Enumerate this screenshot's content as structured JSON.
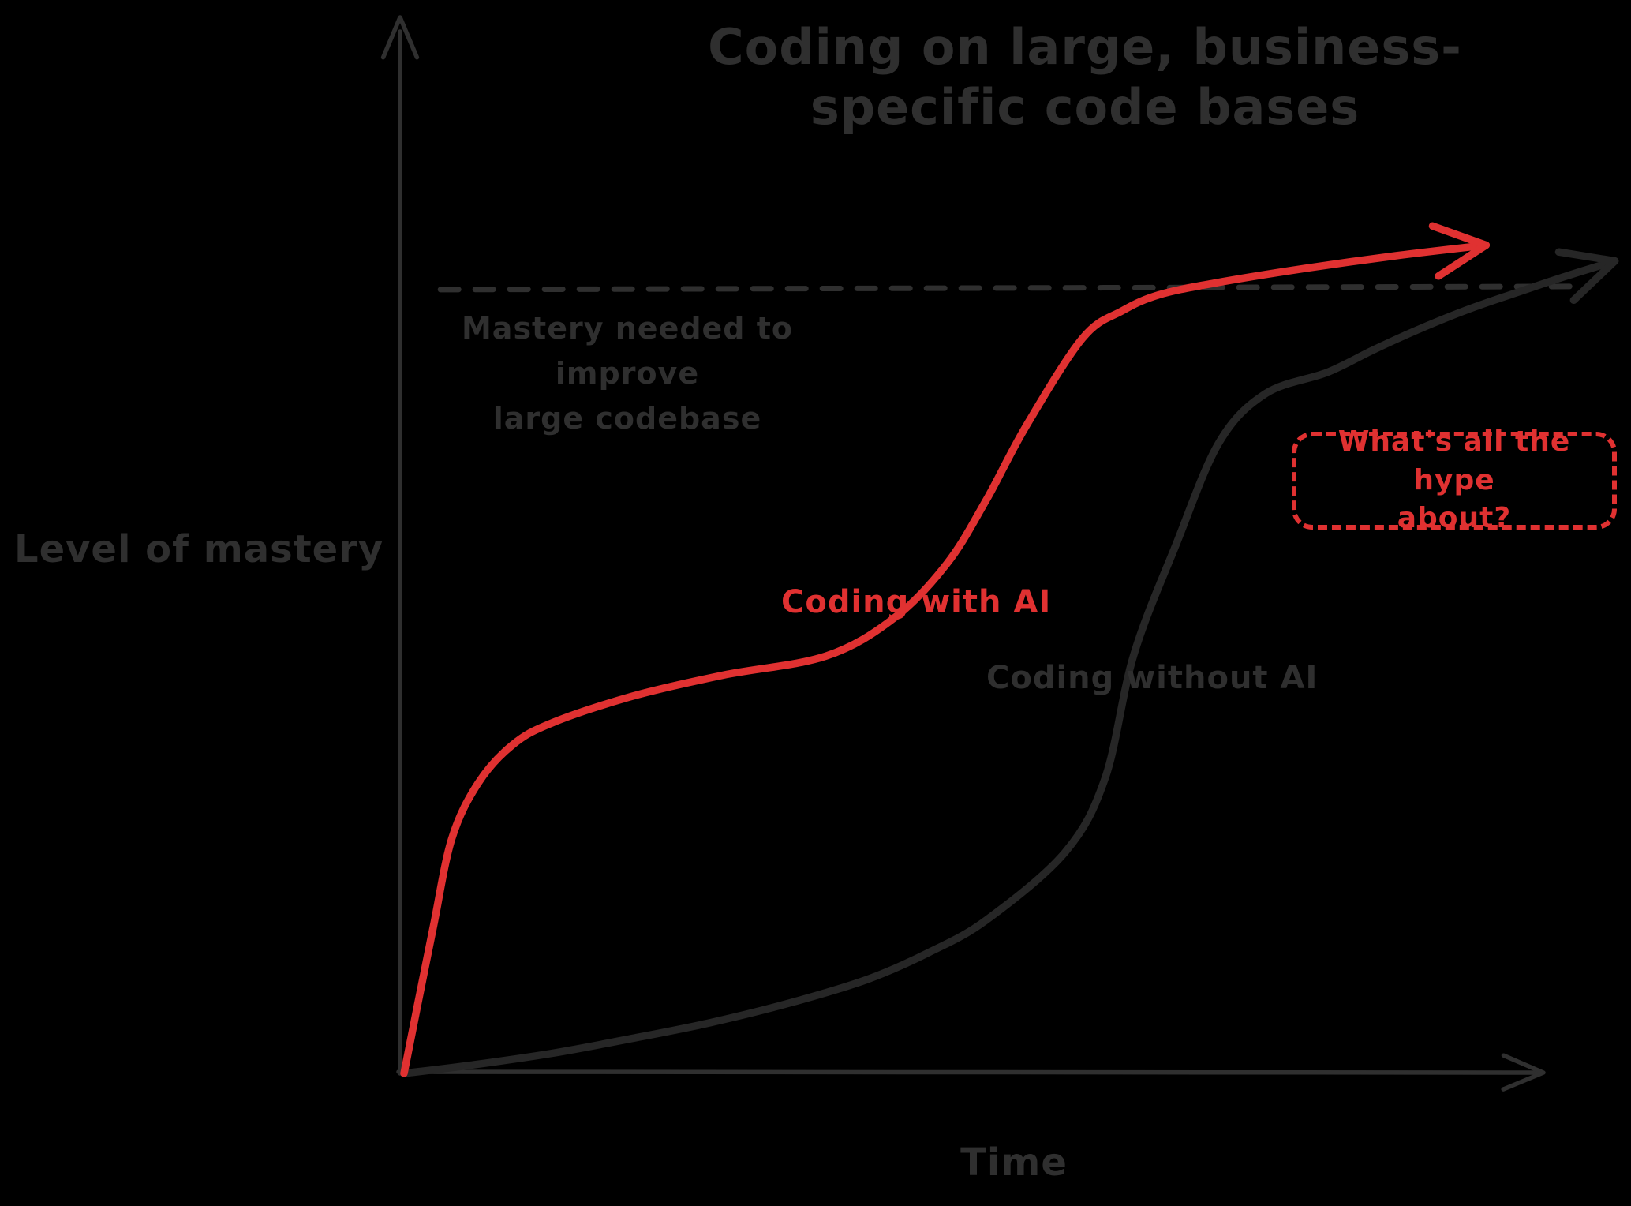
{
  "canvas": {
    "background": "#000000"
  },
  "colors": {
    "ink": "#2f2f2f",
    "curve_gray": "#262626",
    "red": "#e03131",
    "background": "#000000"
  },
  "title": {
    "text": "Coding on large, business-\nspecific code bases"
  },
  "axes": {
    "y_label": "Level of mastery",
    "x_label": "Time"
  },
  "annotations": {
    "reference_label": "Mastery needed to improve\nlarge codebase",
    "with_ai_label": "Coding with AI",
    "without_ai_label": "Coding without AI",
    "hype_callout": "What's all the hype\nabout?"
  },
  "chart_data": {
    "type": "line",
    "title": "Coding on large, business-specific code bases",
    "xlabel": "Time",
    "ylabel": "Level of mastery",
    "axis_units": "arbitrary units (hand-drawn sketch, no numeric ticks)",
    "xlim": [
      0,
      100
    ],
    "ylim": [
      0,
      100
    ],
    "grid": false,
    "legend_position": "inline-labels",
    "reference_line": {
      "y": 74,
      "x_start": 3.2,
      "x_end": 102.3,
      "style": "dashed",
      "label": "Mastery needed to improve large codebase"
    },
    "series": [
      {
        "name": "Coding without AI",
        "color": "#262626",
        "shape": "single sigmoid, slow start, late steep rise crossing mastery threshold at far right",
        "points": [
          [
            0,
            0
          ],
          [
            6,
            0.8
          ],
          [
            13,
            1.9
          ],
          [
            20,
            3.3
          ],
          [
            26.9,
            4.8
          ],
          [
            34,
            6.7
          ],
          [
            40.7,
            8.9
          ],
          [
            46,
            11.4
          ],
          [
            51.1,
            14.5
          ],
          [
            58,
            20.9
          ],
          [
            61.5,
            27.9
          ],
          [
            64,
            39.5
          ],
          [
            67.7,
            49.9
          ],
          [
            71.5,
            59.6
          ],
          [
            75.6,
            64.2
          ],
          [
            81,
            66.2
          ],
          [
            85,
            68.3
          ],
          [
            89.1,
            70.3
          ],
          [
            93.5,
            72.2
          ],
          [
            98.1,
            73.9
          ],
          [
            102,
            75.3
          ],
          [
            106.2,
            76.7
          ]
        ]
      },
      {
        "name": "Coding with AI",
        "color": "#e03131",
        "shape": "double sigmoid: fast initial rise, plateau, second steep rise above mastery threshold",
        "points": [
          [
            0,
            0
          ],
          [
            1.2,
            6.5
          ],
          [
            2.6,
            14
          ],
          [
            4.2,
            22.2
          ],
          [
            6.5,
            27.4
          ],
          [
            9.5,
            31
          ],
          [
            13,
            33.1
          ],
          [
            20,
            35.6
          ],
          [
            28,
            37.6
          ],
          [
            37,
            39.4
          ],
          [
            43,
            43
          ],
          [
            47.6,
            48.1
          ],
          [
            51,
            54
          ],
          [
            54.5,
            61
          ],
          [
            59.5,
            69.4
          ],
          [
            63,
            72
          ],
          [
            66.2,
            73.5
          ],
          [
            71,
            74.6
          ],
          [
            79,
            76
          ],
          [
            87,
            77.2
          ],
          [
            94.9,
            78.2
          ]
        ]
      }
    ],
    "annotations": [
      {
        "text": "What's all the hype about?",
        "color": "#e03131",
        "style": "dashed rounded box",
        "near": "upper right, beside late rise of 'Coding without AI' curve"
      },
      {
        "text": "Coding with AI",
        "color": "#e03131",
        "near": "left of second steep rise of red curve"
      },
      {
        "text": "Coding without AI",
        "color": "#262626",
        "near": "steep rise of gray curve"
      },
      {
        "text": "Mastery needed to improve large codebase",
        "color": "#2f2f2f",
        "near": "under dashed threshold line, left side"
      }
    ]
  }
}
